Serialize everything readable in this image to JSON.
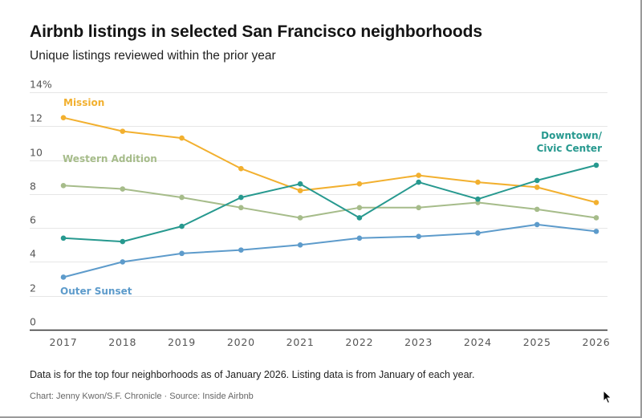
{
  "header": {
    "title": "Airbnb listings in selected San Francisco neighborhoods",
    "subtitle": "Unique listings reviewed within the prior year"
  },
  "footer": {
    "note": "Data is for the top four neighborhoods as of January 2026. Listing data is from January of each year.",
    "credit": "Chart: Jenny Kwon/S.F. Chronicle · Source: Inside Airbnb"
  },
  "chart_data": {
    "type": "line",
    "title": "Airbnb listings in selected San Francisco neighborhoods",
    "subtitle": "Unique listings reviewed within the prior year",
    "xlabel": "",
    "ylabel": "",
    "x": [
      "2017",
      "2018",
      "2019",
      "2020",
      "2021",
      "2022",
      "2023",
      "2024",
      "2025",
      "2026"
    ],
    "ylim": [
      0,
      14
    ],
    "y_ticks": [
      0,
      2,
      4,
      6,
      8,
      10,
      12,
      14
    ],
    "y_tick_labels": [
      "0",
      "2",
      "4",
      "6",
      "8",
      "10",
      "12",
      "14%"
    ],
    "grid": true,
    "legend": "inline labels",
    "series": [
      {
        "name": "Mission",
        "label_lines": [
          "Mission"
        ],
        "color": "#F2B02F",
        "values": [
          12.5,
          11.7,
          11.3,
          9.5,
          8.2,
          8.6,
          9.1,
          8.7,
          8.4,
          7.5
        ]
      },
      {
        "name": "Western Addition",
        "label_lines": [
          "Western Addition"
        ],
        "color": "#A6BC8A",
        "values": [
          8.5,
          8.3,
          7.8,
          7.2,
          6.6,
          7.2,
          7.2,
          7.5,
          7.1,
          6.6
        ]
      },
      {
        "name": "Downtown/Civic Center",
        "label_lines": [
          "Downtown/",
          "Civic Center"
        ],
        "color": "#27998F",
        "values": [
          5.4,
          5.2,
          6.1,
          7.8,
          8.6,
          6.6,
          8.7,
          7.7,
          8.8,
          9.7
        ]
      },
      {
        "name": "Outer Sunset",
        "label_lines": [
          "Outer Sunset"
        ],
        "color": "#5D9BCB",
        "values": [
          3.1,
          4.0,
          4.5,
          4.7,
          5.0,
          5.4,
          5.5,
          5.7,
          6.2,
          5.8
        ]
      }
    ]
  }
}
